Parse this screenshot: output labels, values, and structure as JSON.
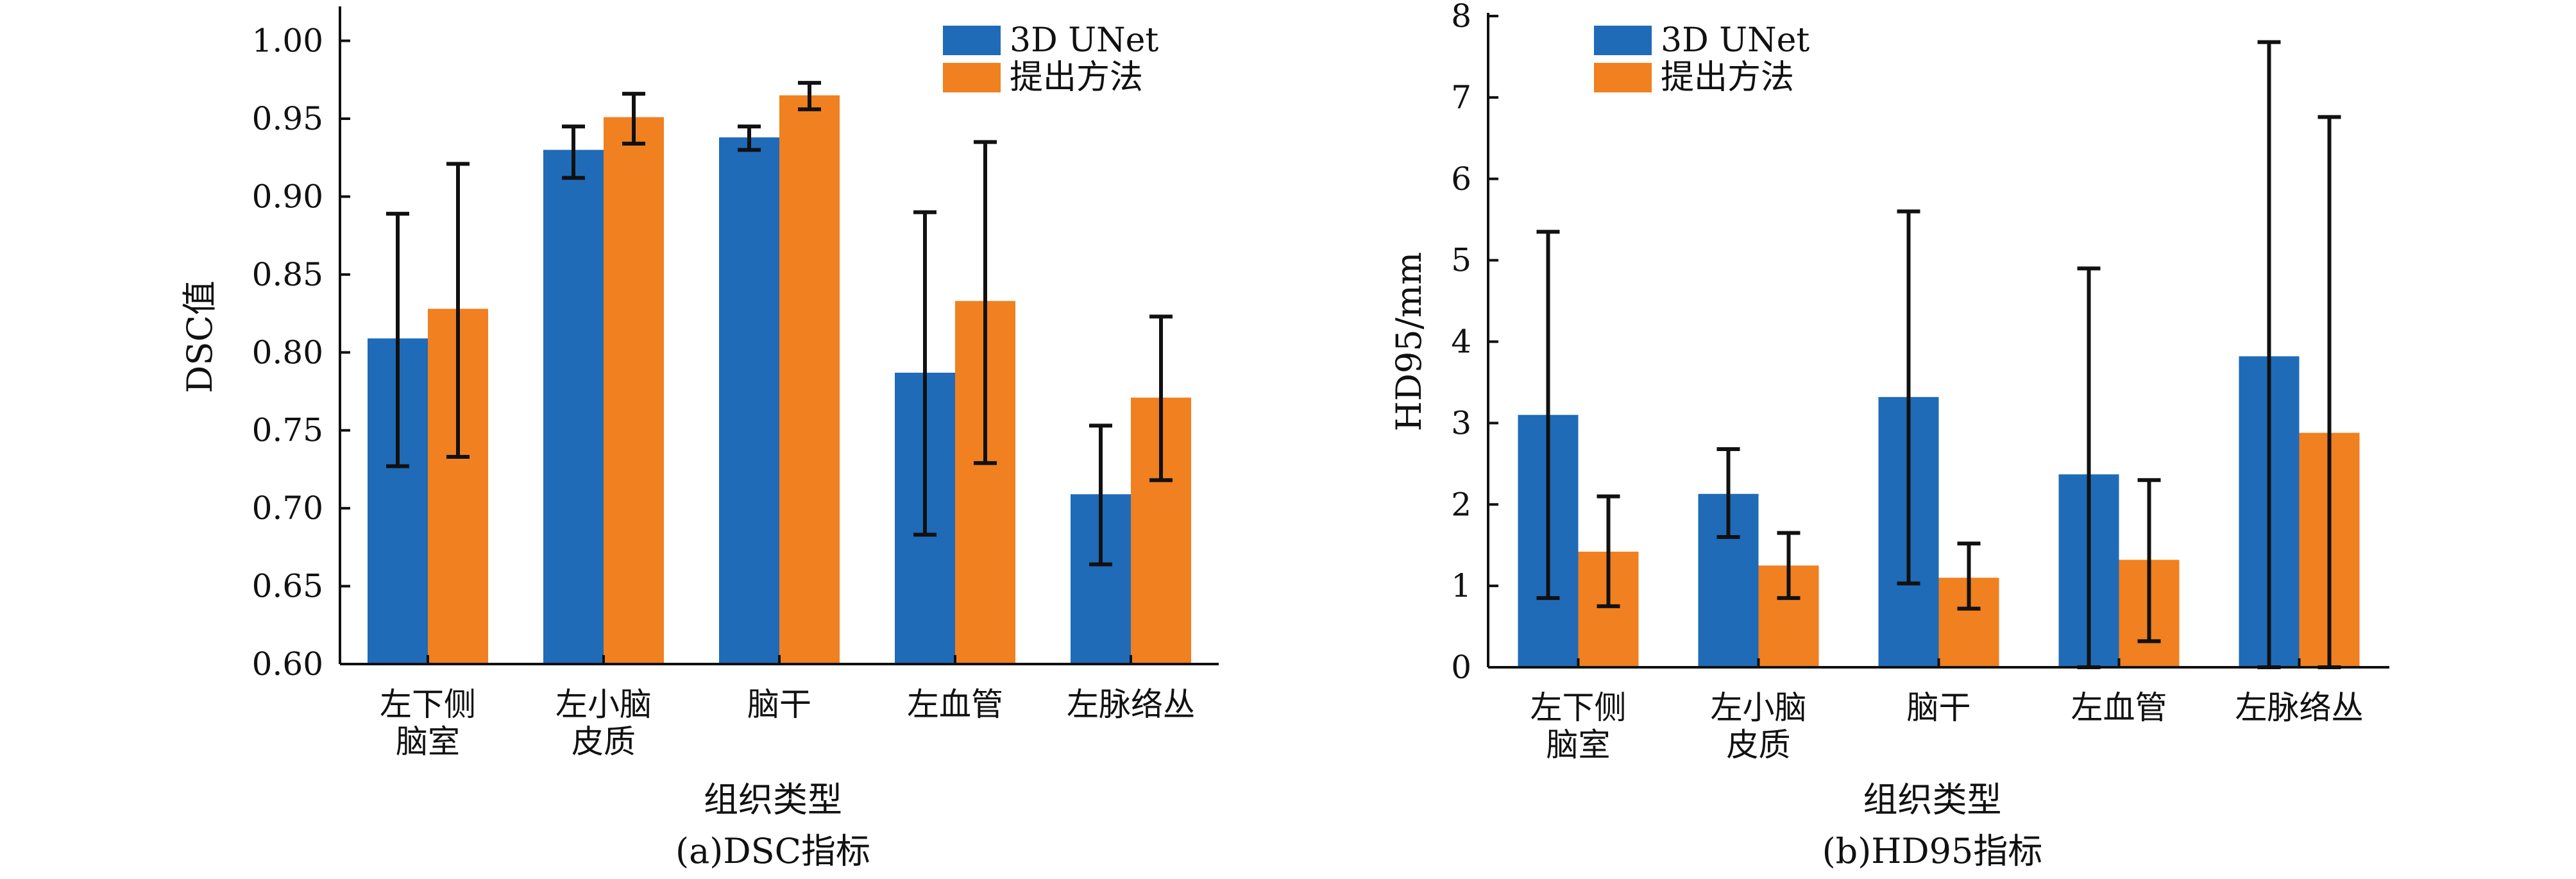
{
  "colors": {
    "series1": "#1f6bb8",
    "series2": "#f08020",
    "error_bar": "#111111",
    "axis": "#111111"
  },
  "chart_data": [
    {
      "type": "bar",
      "caption": "(a)DSC指标",
      "xlabel": "组织类型",
      "ylabel": "DSC值",
      "categories": [
        [
          "左下侧",
          "脑室"
        ],
        [
          "左小脑",
          "皮质"
        ],
        [
          "脑干"
        ],
        [
          "左血管"
        ],
        [
          "左脉络丛"
        ]
      ],
      "ylim": [
        0.6,
        1.02
      ],
      "yticks": [
        0.6,
        0.65,
        0.7,
        0.75,
        0.8,
        0.85,
        0.9,
        0.95,
        1.0
      ],
      "ytick_labels": [
        "0.60",
        "0.65",
        "0.70",
        "0.75",
        "0.80",
        "0.85",
        "0.90",
        "0.95",
        "1.00"
      ],
      "legend_position": "top-right",
      "grid": false,
      "series": [
        {
          "name": "3D UNet",
          "values": [
            0.809,
            0.93,
            0.938,
            0.787,
            0.709
          ],
          "error_low": [
            0.727,
            0.912,
            0.93,
            0.683,
            0.664
          ],
          "error_high": [
            0.889,
            0.945,
            0.945,
            0.89,
            0.753
          ]
        },
        {
          "name": "提出方法",
          "values": [
            0.828,
            0.951,
            0.965,
            0.833,
            0.771
          ],
          "error_low": [
            0.733,
            0.934,
            0.956,
            0.729,
            0.718
          ],
          "error_high": [
            0.921,
            0.966,
            0.973,
            0.935,
            0.823
          ]
        }
      ]
    },
    {
      "type": "bar",
      "caption": "(b)HD95指标",
      "xlabel": "组织类型",
      "ylabel": "HD95/mm",
      "categories": [
        [
          "左下侧",
          "脑室"
        ],
        [
          "左小脑",
          "皮质"
        ],
        [
          "脑干"
        ],
        [
          "左血管"
        ],
        [
          "左脉络丛"
        ]
      ],
      "ylim": [
        0,
        8
      ],
      "yticks": [
        0,
        1,
        2,
        3,
        4,
        5,
        6,
        7,
        8
      ],
      "ytick_labels": [
        "0",
        "1",
        "2",
        "3",
        "4",
        "5",
        "6",
        "7",
        "8"
      ],
      "legend_position": "top-left",
      "grid": false,
      "series": [
        {
          "name": "3D UNet",
          "values": [
            3.1,
            2.13,
            3.32,
            2.37,
            3.82
          ],
          "error_low": [
            0.85,
            1.6,
            1.03,
            0,
            0
          ],
          "error_high": [
            5.35,
            2.68,
            5.6,
            4.9,
            7.68
          ]
        },
        {
          "name": "提出方法",
          "values": [
            1.42,
            1.25,
            1.1,
            1.32,
            2.88
          ],
          "error_low": [
            0.75,
            0.85,
            0.72,
            0.32,
            0
          ],
          "error_high": [
            2.1,
            1.65,
            1.52,
            2.3,
            6.76
          ]
        }
      ]
    }
  ]
}
